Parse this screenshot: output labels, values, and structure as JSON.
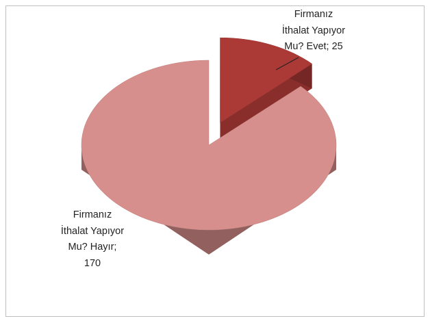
{
  "chart_data": {
    "type": "pie3d",
    "values": [
      25,
      170
    ],
    "value_labels": [
      "Firmanız İthalat Yapıyor Mu? Evet; 25",
      "Firmanız İthalat Yapıyor Mu? Hayır; 170"
    ],
    "colors": [
      "#ab3a36",
      "#d68f8c"
    ]
  }
}
